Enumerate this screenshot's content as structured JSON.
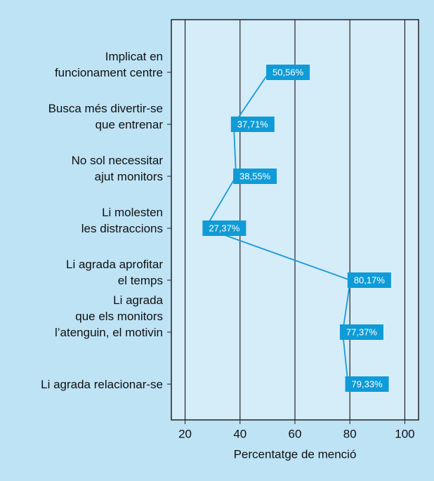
{
  "chart_data": {
    "type": "line",
    "categories": [
      "Implicat en\nfuncionament centre",
      "Busca més divertir-se\nque entrenar",
      "No sol necessitar\najut monitors",
      "Li molesten\nles distraccions",
      "Li agrada aprofitar\nel temps",
      "Li agrada\nque els monitors\nl’atenguin, el motivin",
      "Li agrada relacionar-se"
    ],
    "values": [
      50.56,
      37.71,
      38.55,
      27.37,
      80.17,
      77.37,
      79.33
    ],
    "value_labels": [
      "50,56%",
      "37,71%",
      "38,55%",
      "27,37%",
      "80,17%",
      "77,37%",
      "79,33%"
    ],
    "color": "#1a9ad6",
    "xlabel": "Percentatge de menció",
    "xlim": [
      15,
      105
    ],
    "xticks": [
      20,
      40,
      60,
      80,
      100
    ],
    "grid": true
  }
}
